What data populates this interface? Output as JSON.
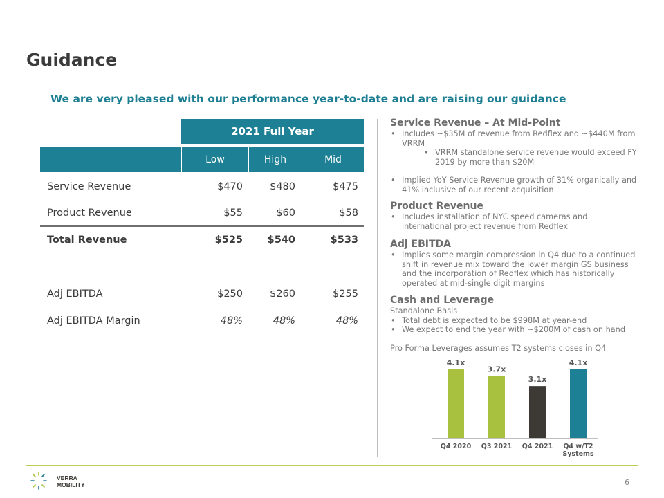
{
  "slide": {
    "title": "Guidance",
    "subtitle": "We are very pleased with our performance year-to-date and are raising our guidance",
    "page_number": "6"
  },
  "table": {
    "group_header": "2021 Full Year",
    "columns": [
      "Low",
      "High",
      "Mid"
    ],
    "rows": [
      {
        "label": "Service Revenue",
        "low": "$470",
        "high": "$480",
        "mid": "$475"
      },
      {
        "label": "Product Revenue",
        "low": "$55",
        "high": "$60",
        "mid": "$58"
      },
      {
        "label": "Total Revenue",
        "low": "$525",
        "high": "$540",
        "mid": "$533"
      },
      {
        "label": "Adj EBITDA",
        "low": "$250",
        "high": "$260",
        "mid": "$255"
      },
      {
        "label": "Adj EBITDA Margin",
        "low": "48%",
        "high": "48%",
        "mid": "48%"
      }
    ]
  },
  "notes": {
    "service": {
      "heading": "Service Revenue – At Mid-Point",
      "b1": "Includes ~$35M of revenue from Redflex and ~$440M from VRRM",
      "b1_sub": "VRRM standalone service revenue would exceed FY 2019 by more than $20M",
      "b2": "Implied YoY Service Revenue growth of 31% organically and 41% inclusive of our recent acquisition"
    },
    "product": {
      "heading": "Product Revenue",
      "b1": "Includes installation of NYC speed cameras and international project revenue from Redflex"
    },
    "ebitda": {
      "heading": "Adj EBITDA",
      "b1": "Implies some margin compression in Q4 due to a continued shift in revenue mix toward the lower margin GS business and the incorporation of Redflex which has historically operated at mid-single digit margins"
    },
    "cash": {
      "heading": "Cash and Leverage",
      "line": "Standalone Basis",
      "b1": "Total debt is expected to be $998M at year-end",
      "b2": "We expect to end the year with ~$200M of cash on hand",
      "pro_forma": "Pro Forma Leverages assumes T2 systems closes in Q4"
    }
  },
  "chart_data": {
    "type": "bar",
    "categories": [
      "Q4 2020",
      "Q3 2021",
      "Q4 2021",
      "Q4 w/T2 Systems"
    ],
    "category_lines": [
      [
        "Q4 2020"
      ],
      [
        "Q3 2021"
      ],
      [
        "Q4 2021"
      ],
      [
        "Q4 w/T2",
        "Systems"
      ]
    ],
    "values": [
      4.1,
      3.7,
      3.1,
      4.1
    ],
    "data_labels": [
      "4.1x",
      "3.7x",
      "3.1x",
      "4.1x"
    ],
    "bar_colors": [
      "#a8c13f",
      "#a8c13f",
      "#3d3a36",
      "#1e8094"
    ],
    "ylim": [
      0,
      4.1
    ],
    "grid": false,
    "legend": "none"
  },
  "logo": {
    "text_line1": "VERRA",
    "text_line2": "MOBILITY",
    "colors": [
      "#a8c13f",
      "#1e8094"
    ]
  }
}
